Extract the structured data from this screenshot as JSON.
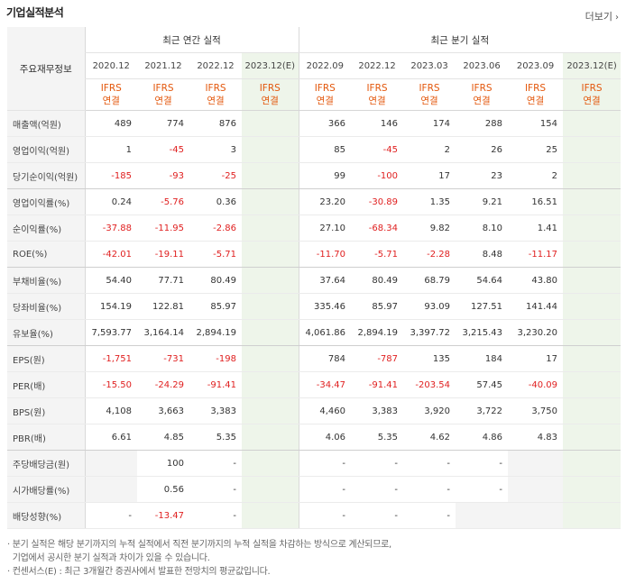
{
  "title": "기업실적분석",
  "more_label": "더보기",
  "header": {
    "row_header": "주요재무정보",
    "annual_group": "최근 연간 실적",
    "quarter_group": "최근 분기 실적",
    "periods": [
      "2020.12",
      "2021.12",
      "2022.12",
      "2023.12(E)",
      "2022.09",
      "2022.12",
      "2023.03",
      "2023.06",
      "2023.09",
      "2023.12(E)"
    ],
    "ifrs_line1": "IFRS",
    "ifrs_line2": "연결"
  },
  "rows": [
    {
      "label": "매출액(억원)",
      "values": [
        "489",
        "774",
        "876",
        "",
        "366",
        "146",
        "174",
        "288",
        "154",
        ""
      ]
    },
    {
      "label": "영업이익(억원)",
      "values": [
        "1",
        "-45",
        "3",
        "",
        "85",
        "-45",
        "2",
        "26",
        "25",
        ""
      ]
    },
    {
      "label": "당기순이익(억원)",
      "values": [
        "-185",
        "-93",
        "-25",
        "",
        "99",
        "-100",
        "17",
        "23",
        "2",
        ""
      ]
    },
    {
      "label": "영업이익률(%)",
      "values": [
        "0.24",
        "-5.76",
        "0.36",
        "",
        "23.20",
        "-30.89",
        "1.35",
        "9.21",
        "16.51",
        ""
      ]
    },
    {
      "label": "순이익률(%)",
      "values": [
        "-37.88",
        "-11.95",
        "-2.86",
        "",
        "27.10",
        "-68.34",
        "9.82",
        "8.10",
        "1.41",
        ""
      ]
    },
    {
      "label": "ROE(%)",
      "values": [
        "-42.01",
        "-19.11",
        "-5.71",
        "",
        "-11.70",
        "-5.71",
        "-2.28",
        "8.48",
        "-11.17",
        ""
      ]
    },
    {
      "label": "부채비율(%)",
      "values": [
        "54.40",
        "77.71",
        "80.49",
        "",
        "37.64",
        "80.49",
        "68.79",
        "54.64",
        "43.80",
        ""
      ]
    },
    {
      "label": "당좌비율(%)",
      "values": [
        "154.19",
        "122.81",
        "85.97",
        "",
        "335.46",
        "85.97",
        "93.09",
        "127.51",
        "141.44",
        ""
      ]
    },
    {
      "label": "유보율(%)",
      "values": [
        "7,593.77",
        "3,164.14",
        "2,894.19",
        "",
        "4,061.86",
        "2,894.19",
        "3,397.72",
        "3,215.43",
        "3,230.20",
        ""
      ]
    },
    {
      "label": "EPS(원)",
      "values": [
        "-1,751",
        "-731",
        "-198",
        "",
        "784",
        "-787",
        "135",
        "184",
        "17",
        ""
      ]
    },
    {
      "label": "PER(배)",
      "values": [
        "-15.50",
        "-24.29",
        "-91.41",
        "",
        "-34.47",
        "-91.41",
        "-203.54",
        "57.45",
        "-40.09",
        ""
      ]
    },
    {
      "label": "BPS(원)",
      "values": [
        "4,108",
        "3,663",
        "3,383",
        "",
        "4,460",
        "3,383",
        "3,920",
        "3,722",
        "3,750",
        ""
      ]
    },
    {
      "label": "PBR(배)",
      "values": [
        "6.61",
        "4.85",
        "5.35",
        "",
        "4.06",
        "5.35",
        "4.62",
        "4.86",
        "4.83",
        ""
      ]
    },
    {
      "label": "주당배당금(원)",
      "values": [
        "",
        "100",
        "-",
        "",
        "-",
        "-",
        "-",
        "-",
        "",
        ""
      ]
    },
    {
      "label": "시가배당률(%)",
      "values": [
        "",
        "0.56",
        "-",
        "",
        "-",
        "-",
        "-",
        "-",
        "",
        ""
      ]
    },
    {
      "label": "배당성향(%)",
      "values": [
        "-",
        "-13.47",
        "-",
        "",
        "-",
        "-",
        "-",
        "",
        "",
        ""
      ]
    }
  ],
  "notes": [
    "· 분기 실적은 해당 분기까지의 누적 실적에서 직전 분기까지의 누적 실적을 차감하는 방식으로 계산되므로,",
    "  기업에서 공시한 분기 실적과 차이가 있을 수 있습니다.",
    "· 컨센서스(E) : 최근 3개월간 증권사에서 발표한 전망치의 평균값입니다."
  ]
}
